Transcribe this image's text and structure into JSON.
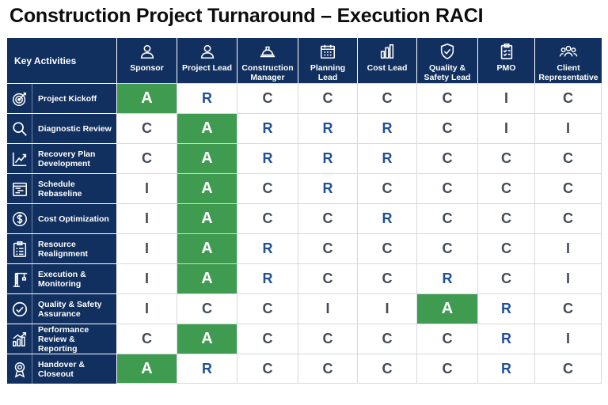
{
  "title": "Construction Project Turnaround – Execution RACI",
  "colors": {
    "header_bg": "#12305f",
    "accountable": "#3e9b4f",
    "responsible_text": "#1f4f97",
    "other_text": "#444b55"
  },
  "key_header": "Key Activities",
  "roles": [
    {
      "label": "Sponsor",
      "icon": "person-icon"
    },
    {
      "label": "Project Lead",
      "icon": "person-icon"
    },
    {
      "label": "Construction Manager",
      "icon": "hard-hat-icon"
    },
    {
      "label": "Planning Lead",
      "icon": "calendar-icon"
    },
    {
      "label": "Cost Lead",
      "icon": "bar-chart-icon"
    },
    {
      "label": "Quality & Safety Lead",
      "icon": "shield-check-icon"
    },
    {
      "label": "PMO",
      "icon": "clipboard-icon"
    },
    {
      "label": "Client Representative",
      "icon": "group-icon"
    }
  ],
  "activities": [
    {
      "label": "Project Kickoff",
      "icon": "target-icon",
      "values": [
        "A",
        "R",
        "C",
        "C",
        "C",
        "C",
        "I",
        "C"
      ]
    },
    {
      "label": "Diagnostic Review",
      "icon": "magnifier-icon",
      "values": [
        "C",
        "A",
        "R",
        "R",
        "R",
        "C",
        "I",
        "I"
      ]
    },
    {
      "label": "Recovery Plan Development",
      "icon": "trend-up-icon",
      "values": [
        "C",
        "A",
        "R",
        "R",
        "R",
        "C",
        "C",
        "C"
      ]
    },
    {
      "label": "Schedule Rebaseline",
      "icon": "gantt-icon",
      "values": [
        "I",
        "A",
        "C",
        "R",
        "C",
        "C",
        "C",
        "C"
      ]
    },
    {
      "label": "Cost Optimization",
      "icon": "dollar-icon",
      "values": [
        "I",
        "A",
        "C",
        "C",
        "R",
        "C",
        "C",
        "C"
      ]
    },
    {
      "label": "Resource Realignment",
      "icon": "checklist-icon",
      "values": [
        "I",
        "A",
        "R",
        "C",
        "C",
        "C",
        "C",
        "I"
      ]
    },
    {
      "label": "Execution & Monitoring",
      "icon": "crane-icon",
      "values": [
        "I",
        "A",
        "R",
        "C",
        "C",
        "R",
        "C",
        "I"
      ]
    },
    {
      "label": "Quality & Safety Assurance",
      "icon": "check-circle-icon",
      "values": [
        "I",
        "C",
        "C",
        "I",
        "I",
        "A",
        "R",
        "C"
      ]
    },
    {
      "label": "Performance Review & Reporting",
      "icon": "growth-chart-icon",
      "values": [
        "C",
        "A",
        "C",
        "C",
        "C",
        "C",
        "R",
        "I"
      ]
    },
    {
      "label": "Handover & Closeout",
      "icon": "award-icon",
      "values": [
        "A",
        "R",
        "C",
        "C",
        "C",
        "C",
        "R",
        "C"
      ]
    }
  ]
}
